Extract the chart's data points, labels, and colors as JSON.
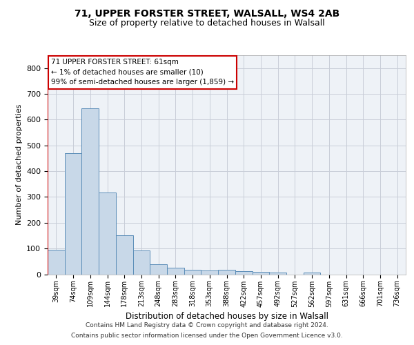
{
  "title1": "71, UPPER FORSTER STREET, WALSALL, WS4 2AB",
  "title2": "Size of property relative to detached houses in Walsall",
  "xlabel": "Distribution of detached houses by size in Walsall",
  "ylabel": "Number of detached properties",
  "bar_color": "#c8d8e8",
  "bar_edge_color": "#5b8db8",
  "highlight_line_color": "#cc0000",
  "categories": [
    "39sqm",
    "74sqm",
    "109sqm",
    "144sqm",
    "178sqm",
    "213sqm",
    "248sqm",
    "283sqm",
    "318sqm",
    "353sqm",
    "388sqm",
    "422sqm",
    "457sqm",
    "492sqm",
    "527sqm",
    "562sqm",
    "597sqm",
    "631sqm",
    "666sqm",
    "701sqm",
    "736sqm"
  ],
  "values": [
    95,
    470,
    645,
    318,
    152,
    92,
    40,
    25,
    18,
    14,
    17,
    13,
    10,
    6,
    0,
    8,
    0,
    0,
    0,
    0,
    0
  ],
  "ylim": [
    0,
    850
  ],
  "yticks": [
    0,
    100,
    200,
    300,
    400,
    500,
    600,
    700,
    800
  ],
  "annotation_line1": "71 UPPER FORSTER STREET: 61sqm",
  "annotation_line2": "← 1% of detached houses are smaller (10)",
  "annotation_line3": "99% of semi-detached houses are larger (1,859) →",
  "annotation_box_color": "#ffffff",
  "annotation_border_color": "#cc0000",
  "footer1": "Contains HM Land Registry data © Crown copyright and database right 2024.",
  "footer2": "Contains public sector information licensed under the Open Government Licence v3.0.",
  "background_color": "#eef2f7",
  "grid_color": "#c8cdd8"
}
